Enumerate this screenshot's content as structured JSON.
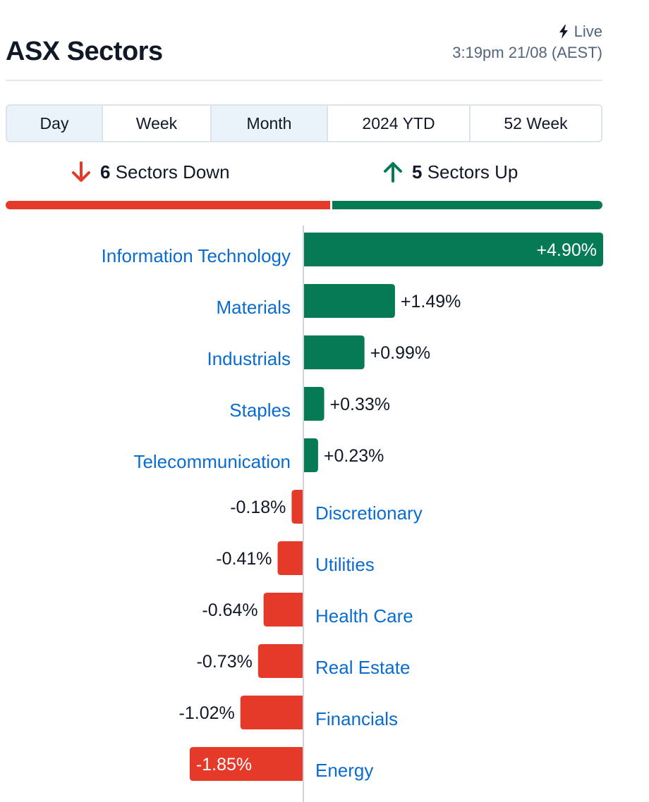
{
  "header": {
    "title": "ASX Sectors",
    "live_label": "Live",
    "timestamp": "3:19pm 21/08 (AEST)"
  },
  "tabs": [
    {
      "label": "Day",
      "shaded": true
    },
    {
      "label": "Week",
      "shaded": false
    },
    {
      "label": "Month",
      "shaded": true
    },
    {
      "label": "2024 YTD",
      "shaded": false
    },
    {
      "label": "52 Week",
      "shaded": false
    }
  ],
  "summary": {
    "down_count": "6",
    "down_label": "Sectors Down",
    "up_count": "5",
    "up_label": "Sectors Up"
  },
  "colors": {
    "up": "#067a55",
    "down": "#e5392a",
    "link": "#0a6ccf",
    "divider": "#d1d5db"
  },
  "chart_data": {
    "type": "bar",
    "orientation": "horizontal",
    "categories": [
      "Information Technology",
      "Materials",
      "Industrials",
      "Staples",
      "Telecommunication",
      "Discretionary",
      "Utilities",
      "Health Care",
      "Real Estate",
      "Financials",
      "Energy"
    ],
    "values": [
      4.9,
      1.49,
      0.99,
      0.33,
      0.23,
      -0.18,
      -0.41,
      -0.64,
      -0.73,
      -1.02,
      -1.85
    ],
    "labels": [
      "+4.90%",
      "+1.49%",
      "+0.99%",
      "+0.33%",
      "+0.23%",
      "-0.18%",
      "-0.41%",
      "-0.64%",
      "-0.73%",
      "-1.02%",
      "-1.85%"
    ],
    "unit": "%"
  }
}
